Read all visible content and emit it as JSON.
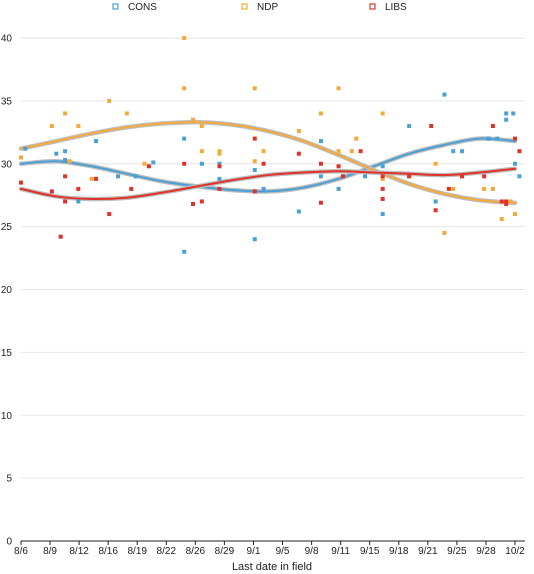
{
  "chart_data": {
    "type": "scatter",
    "title": "",
    "xlabel": "Last date in field",
    "ylabel": "",
    "x_tick_labels": [
      "8/6",
      "8/9",
      "8/12",
      "8/16",
      "8/19",
      "8/22",
      "8/26",
      "8/29",
      "9/1",
      "9/5",
      "9/8",
      "9/11",
      "9/15",
      "9/18",
      "9/21",
      "9/25",
      "9/28",
      "10/2"
    ],
    "xlim": [
      0,
      56
    ],
    "ylim": [
      0,
      40
    ],
    "y_ticks": [
      0,
      5,
      10,
      15,
      20,
      25,
      30,
      35,
      40
    ],
    "grid": "horizontal",
    "legend_position": "top",
    "series": [
      {
        "name": "CONS",
        "color": "#4aa0d5",
        "points": [
          [
            0.5,
            31.2
          ],
          [
            4,
            30.8
          ],
          [
            5,
            31
          ],
          [
            5,
            30.3
          ],
          [
            6.5,
            27
          ],
          [
            8.5,
            31.8
          ],
          [
            11,
            29
          ],
          [
            13,
            29
          ],
          [
            15,
            30.1
          ],
          [
            18.5,
            32
          ],
          [
            18.5,
            23
          ],
          [
            20.5,
            30
          ],
          [
            22.5,
            28.8
          ],
          [
            22.5,
            30
          ],
          [
            26.5,
            24
          ],
          [
            26.5,
            29.5
          ],
          [
            27.5,
            28
          ],
          [
            31.5,
            26.2
          ],
          [
            34,
            31.8
          ],
          [
            34,
            29
          ],
          [
            36,
            28
          ],
          [
            36.5,
            29
          ],
          [
            39,
            29
          ],
          [
            41,
            29.8
          ],
          [
            41,
            26
          ],
          [
            44,
            33
          ],
          [
            47,
            27
          ],
          [
            48,
            35.5
          ],
          [
            49,
            31
          ],
          [
            50,
            31
          ],
          [
            53,
            32
          ],
          [
            54,
            32
          ],
          [
            55,
            33.5
          ],
          [
            55,
            34
          ],
          [
            55.8,
            34
          ],
          [
            56,
            30
          ],
          [
            56.5,
            29
          ]
        ],
        "trend": [
          [
            0,
            30
          ],
          [
            4,
            30.2
          ],
          [
            8,
            29.8
          ],
          [
            12,
            29.2
          ],
          [
            16,
            28.6
          ],
          [
            20,
            28.2
          ],
          [
            24,
            27.9
          ],
          [
            28,
            27.8
          ],
          [
            32,
            28.1
          ],
          [
            36,
            28.8
          ],
          [
            40,
            29.8
          ],
          [
            44,
            30.8
          ],
          [
            48,
            31.5
          ],
          [
            52,
            32
          ],
          [
            56,
            31.8
          ]
        ]
      },
      {
        "name": "NDP",
        "color": "#f5a93a",
        "points": [
          [
            0,
            30.5
          ],
          [
            3.5,
            33
          ],
          [
            5,
            34
          ],
          [
            5.5,
            30.2
          ],
          [
            6.5,
            33
          ],
          [
            8,
            28.8
          ],
          [
            10,
            35
          ],
          [
            12,
            34
          ],
          [
            14,
            30
          ],
          [
            18.5,
            36
          ],
          [
            18.5,
            40
          ],
          [
            19.5,
            33.5
          ],
          [
            20.5,
            31
          ],
          [
            20.5,
            33
          ],
          [
            22.5,
            31
          ],
          [
            22.5,
            30.8
          ],
          [
            26.5,
            36
          ],
          [
            26.5,
            30.2
          ],
          [
            27.5,
            31
          ],
          [
            31.5,
            32.6
          ],
          [
            34,
            34
          ],
          [
            36,
            36
          ],
          [
            36,
            31
          ],
          [
            37.5,
            31
          ],
          [
            38,
            32
          ],
          [
            41,
            34
          ],
          [
            41,
            28.8
          ],
          [
            44,
            29
          ],
          [
            47,
            30
          ],
          [
            48,
            24.5
          ],
          [
            49,
            28
          ],
          [
            50,
            29
          ],
          [
            52.5,
            28
          ],
          [
            53.5,
            28
          ],
          [
            54.5,
            25.6
          ],
          [
            55,
            27
          ],
          [
            55.5,
            27
          ],
          [
            56,
            26
          ]
        ],
        "trend": [
          [
            0,
            31.2
          ],
          [
            4,
            31.8
          ],
          [
            8,
            32.4
          ],
          [
            12,
            32.9
          ],
          [
            16,
            33.2
          ],
          [
            20,
            33.3
          ],
          [
            24,
            33.1
          ],
          [
            28,
            32.6
          ],
          [
            32,
            31.8
          ],
          [
            36,
            30.7
          ],
          [
            40,
            29.5
          ],
          [
            44,
            28.4
          ],
          [
            48,
            27.6
          ],
          [
            52,
            27.1
          ],
          [
            56,
            26.9
          ]
        ]
      },
      {
        "name": "LIBS",
        "color": "#e0322a",
        "points": [
          [
            0,
            28.5
          ],
          [
            3.5,
            27.8
          ],
          [
            4.5,
            24.2
          ],
          [
            5,
            27
          ],
          [
            5,
            29
          ],
          [
            6.5,
            28
          ],
          [
            8.5,
            28.8
          ],
          [
            10,
            26
          ],
          [
            12.5,
            28
          ],
          [
            14.5,
            29.8
          ],
          [
            18.5,
            30
          ],
          [
            19.5,
            26.8
          ],
          [
            20.5,
            27
          ],
          [
            22.5,
            28
          ],
          [
            22.5,
            29.8
          ],
          [
            26.5,
            32
          ],
          [
            26.5,
            27.8
          ],
          [
            27.5,
            30
          ],
          [
            31.5,
            30.8
          ],
          [
            34,
            30
          ],
          [
            34,
            26.9
          ],
          [
            36,
            29.8
          ],
          [
            36.5,
            29
          ],
          [
            38.5,
            31
          ],
          [
            41,
            28
          ],
          [
            41,
            29
          ],
          [
            41,
            27.2
          ],
          [
            44,
            29
          ],
          [
            46.5,
            33
          ],
          [
            47,
            26.3
          ],
          [
            48.5,
            28
          ],
          [
            50,
            29
          ],
          [
            52.5,
            29
          ],
          [
            53.5,
            33
          ],
          [
            54.5,
            27
          ],
          [
            55,
            26.8
          ],
          [
            55,
            27
          ],
          [
            56,
            32
          ],
          [
            56.5,
            31
          ]
        ],
        "trend": [
          [
            0,
            28
          ],
          [
            4,
            27.4
          ],
          [
            8,
            27.2
          ],
          [
            12,
            27.3
          ],
          [
            16,
            27.7
          ],
          [
            20,
            28.2
          ],
          [
            24,
            28.7
          ],
          [
            28,
            29.1
          ],
          [
            32,
            29.3
          ],
          [
            36,
            29.4
          ],
          [
            40,
            29.3
          ],
          [
            44,
            29.2
          ],
          [
            48,
            29.1
          ],
          [
            52,
            29.3
          ],
          [
            56,
            29.6
          ]
        ]
      }
    ]
  }
}
